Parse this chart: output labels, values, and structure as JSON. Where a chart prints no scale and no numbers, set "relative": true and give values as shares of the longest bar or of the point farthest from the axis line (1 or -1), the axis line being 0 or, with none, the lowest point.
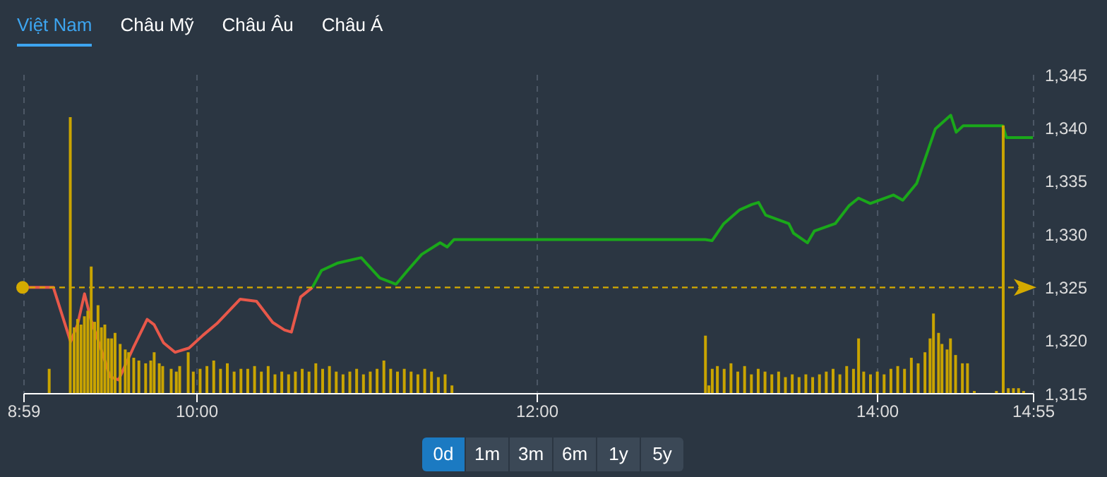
{
  "chart_data": [
    {
      "type": "line",
      "annotations": [
        "Việt Nam",
        "Châu Mỹ",
        "Châu Âu",
        "Châu Á",
        "0d",
        "1m",
        "3m",
        "6m",
        "1y",
        "5y"
      ],
      "xlim": [
        8.9833,
        14.9167
      ],
      "xticks": [
        {
          "value": 8.9833,
          "label": "8:59"
        },
        {
          "value": 10,
          "label": "10:00"
        },
        {
          "value": 12,
          "label": "12:00"
        },
        {
          "value": 14,
          "label": "14:00"
        },
        {
          "value": 14.9167,
          "label": "14:55"
        }
      ],
      "ylim": [
        1315,
        1345
      ],
      "yticks": [
        {
          "value": 1315,
          "label": "1,315"
        },
        {
          "value": 1320,
          "label": "1,320"
        },
        {
          "value": 1325,
          "label": "1,325"
        },
        {
          "value": 1330,
          "label": "1,330"
        },
        {
          "value": 1335,
          "label": "1,335"
        },
        {
          "value": 1340,
          "label": "1,340"
        },
        {
          "value": 1345,
          "label": "1,345"
        }
      ],
      "grid": true,
      "ref_lines": [
        {
          "axis": "y",
          "value": 1325,
          "color": "#d4aa00",
          "line_style": "dashed"
        }
      ],
      "series": [
        {
          "color": "#e8584a",
          "x": [
            8.998,
            9.156,
            9.257,
            9.298,
            9.339,
            9.376,
            9.434,
            9.489,
            9.539,
            9.625,
            9.707,
            9.748,
            9.803,
            9.871,
            9.953,
            10.035,
            10.117,
            10.254,
            10.35,
            10.445,
            10.514,
            10.555,
            10.609,
            10.678
          ],
          "values": [
            1325,
            1325,
            1319.9,
            1321.5,
            1324.4,
            1322,
            1319.3,
            1316.6,
            1316.3,
            1319.3,
            1322,
            1321.5,
            1319.8,
            1318.9,
            1319.3,
            1320.5,
            1321.6,
            1323.9,
            1323.7,
            1321.7,
            1321,
            1320.8,
            1324.1,
            1325
          ]
        },
        {
          "color": "#1aa81a",
          "x": [
            10.678,
            10.732,
            10.828,
            10.965,
            11.074,
            11.17,
            11.238,
            11.32,
            11.429,
            11.47,
            11.51,
            12.276,
            12.986,
            13.027,
            13.096,
            13.19,
            13.26,
            13.3,
            13.342,
            13.478,
            13.506,
            13.588,
            13.628,
            13.751,
            13.833,
            13.888,
            13.957,
            14.093,
            14.148,
            14.23,
            14.339,
            14.43,
            14.462,
            14.503,
            14.735,
            14.757,
            14.913
          ],
          "values": [
            1325,
            1326.6,
            1327.3,
            1327.8,
            1325.9,
            1325.3,
            1326.6,
            1328.1,
            1329.2,
            1328.8,
            1329.5,
            1329.5,
            1329.5,
            1329.4,
            1331,
            1332.3,
            1332.8,
            1333,
            1331.8,
            1331,
            1330.1,
            1329.2,
            1330.3,
            1331,
            1332.7,
            1333.4,
            1332.9,
            1333.7,
            1333.2,
            1334.8,
            1339.9,
            1341.2,
            1339.6,
            1340.2,
            1340.2,
            1339.1,
            1339.1
          ]
        }
      ]
    },
    {
      "type": "bar",
      "relative": true,
      "tick_labels": false,
      "color": "#c9a400",
      "xlim": [
        8.9833,
        14.9167
      ],
      "x": [
        9.133,
        9.257,
        9.28,
        9.3,
        9.32,
        9.34,
        9.36,
        9.38,
        9.4,
        9.42,
        9.44,
        9.46,
        9.48,
        9.5,
        9.52,
        9.55,
        9.58,
        9.6,
        9.63,
        9.66,
        9.7,
        9.73,
        9.75,
        9.78,
        9.8,
        9.85,
        9.88,
        9.9,
        9.95,
        9.98,
        10.02,
        10.06,
        10.1,
        10.14,
        10.18,
        10.22,
        10.26,
        10.3,
        10.34,
        10.38,
        10.42,
        10.46,
        10.5,
        10.54,
        10.58,
        10.62,
        10.66,
        10.7,
        10.74,
        10.78,
        10.82,
        10.86,
        10.9,
        10.94,
        10.98,
        11.02,
        11.06,
        11.1,
        11.14,
        11.18,
        11.22,
        11.26,
        11.3,
        11.34,
        11.38,
        11.42,
        11.46,
        11.5,
        12.99,
        13.01,
        13.03,
        13.06,
        13.1,
        13.14,
        13.18,
        13.22,
        13.26,
        13.3,
        13.34,
        13.38,
        13.42,
        13.46,
        13.5,
        13.54,
        13.58,
        13.62,
        13.66,
        13.7,
        13.74,
        13.78,
        13.82,
        13.86,
        13.89,
        13.92,
        13.96,
        14.0,
        14.04,
        14.08,
        14.12,
        14.16,
        14.2,
        14.24,
        14.28,
        14.31,
        14.33,
        14.36,
        14.38,
        14.41,
        14.43,
        14.46,
        14.5,
        14.53,
        14.57,
        14.7,
        14.74,
        14.77,
        14.8,
        14.83,
        14.86
      ],
      "values": [
        0.09,
        1.0,
        0.24,
        0.27,
        0.25,
        0.28,
        0.3,
        0.46,
        0.26,
        0.32,
        0.24,
        0.25,
        0.2,
        0.2,
        0.22,
        0.18,
        0.16,
        0.15,
        0.13,
        0.12,
        0.11,
        0.12,
        0.15,
        0.11,
        0.1,
        0.09,
        0.08,
        0.1,
        0.15,
        0.08,
        0.09,
        0.1,
        0.12,
        0.09,
        0.11,
        0.08,
        0.09,
        0.09,
        0.1,
        0.08,
        0.1,
        0.07,
        0.08,
        0.07,
        0.08,
        0.09,
        0.08,
        0.11,
        0.09,
        0.1,
        0.08,
        0.07,
        0.08,
        0.09,
        0.07,
        0.08,
        0.09,
        0.12,
        0.09,
        0.08,
        0.09,
        0.08,
        0.07,
        0.09,
        0.08,
        0.06,
        0.07,
        0.03,
        0.21,
        0.03,
        0.09,
        0.1,
        0.09,
        0.11,
        0.08,
        0.1,
        0.07,
        0.09,
        0.08,
        0.07,
        0.08,
        0.06,
        0.07,
        0.06,
        0.07,
        0.06,
        0.07,
        0.08,
        0.09,
        0.07,
        0.1,
        0.09,
        0.2,
        0.08,
        0.07,
        0.08,
        0.07,
        0.09,
        0.1,
        0.09,
        0.13,
        0.11,
        0.15,
        0.2,
        0.29,
        0.22,
        0.18,
        0.16,
        0.2,
        0.14,
        0.11,
        0.11,
        0.01,
        0.01,
        0.97,
        0.02,
        0.02,
        0.02,
        0.01
      ]
    }
  ]
}
